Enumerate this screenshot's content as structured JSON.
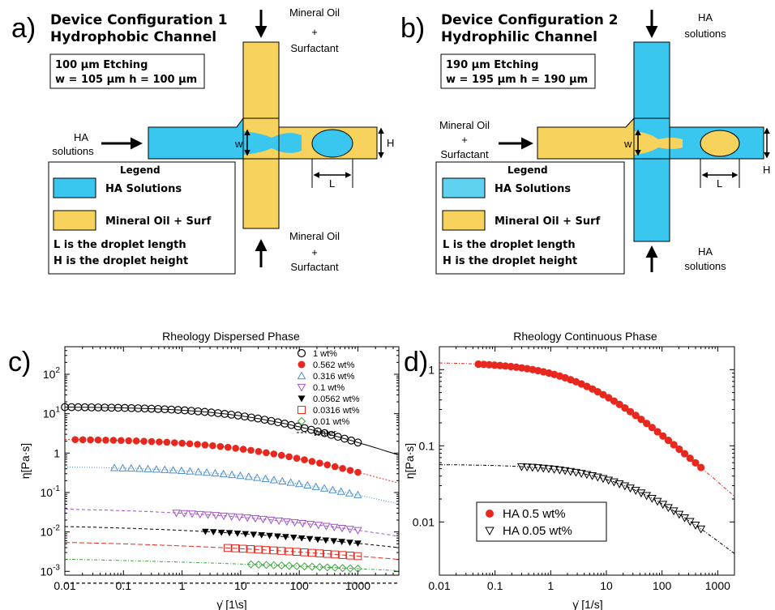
{
  "panels": {
    "a": {
      "letter": "a)",
      "title1": "Device Configuration 1",
      "title2": "Hydrophobic Channel",
      "etch1": "100 μm Etching",
      "etch2": "w = 105 μm h = 100 μm",
      "top_label": [
        "Mineral Oil",
        "+",
        "Surfactant"
      ],
      "bottom_label": [
        "Mineral Oil",
        "+",
        "Surfactant"
      ],
      "inlet_label": [
        "HA",
        "solutions"
      ],
      "legend_title": "Legend",
      "legend_items": [
        "HA Solutions",
        "Mineral Oil + Surf"
      ],
      "note_L": "L is the droplet length",
      "note_H": "H is the droplet height",
      "w": "w",
      "L": "L",
      "H": "H"
    },
    "b": {
      "letter": "b)",
      "title1": "Device Configuration 2",
      "title2": "Hydrophilic Channel",
      "etch1": "190 μm Etching",
      "etch2": "w = 195 μm h = 190 μm",
      "top_label": [
        "HA",
        "solutions"
      ],
      "bottom_label": [
        "HA",
        "solutions"
      ],
      "inlet_label": [
        "Mineral Oil",
        "+",
        "Surfactant"
      ],
      "legend_title": "Legend",
      "legend_items": [
        "HA Solutions",
        "Mineral Oil + Surf"
      ],
      "note_L": "L is the droplet length",
      "note_H": "H is the droplet height",
      "w": "w",
      "L": "L",
      "H": "H"
    },
    "c": {
      "letter": "c)"
    },
    "d": {
      "letter": "d)"
    }
  },
  "colors": {
    "ha_blue": "#39c7ef",
    "oil_yellow": "#f7d25c",
    "red": "#e8281e",
    "blue": "#4a8fd1",
    "purple": "#a050c8",
    "green": "#3aa63a"
  },
  "chart_data": [
    {
      "type": "scatter",
      "title": "Rheology Dispersed Phase",
      "xlabel": "γ̇ [1\\s]",
      "ylabel": "η[Pa·s]",
      "xscale": "log",
      "yscale": "log",
      "xlim": [
        0.01,
        5000
      ],
      "ylim": [
        0.0008,
        500
      ],
      "xticks": [
        "0.01",
        "0.1",
        "1",
        "10",
        "100",
        "1000"
      ],
      "yticks": [
        "10-3",
        "10-2",
        "10-1",
        "1",
        "101",
        "102"
      ],
      "legend_position": "top-right",
      "series": [
        {
          "name": "1 wt%",
          "marker": "circle-open",
          "color": "#000000",
          "eta0": 15,
          "lambda": 0.05,
          "n": 0.5,
          "x_from": 0.01,
          "x_to": 1000,
          "count": 45
        },
        {
          "name": "0.562 wt%",
          "marker": "circle-filled",
          "color": "#e8281e",
          "eta0": 2.3,
          "lambda": 0.06,
          "n": 0.56,
          "x_from": 0.015,
          "x_to": 1000,
          "count": 38
        },
        {
          "name": "0.316 wt%",
          "marker": "triangle-up-open",
          "color": "#4a8fd1",
          "eta0": 0.47,
          "lambda": 0.05,
          "n": 0.62,
          "x_from": 0.07,
          "x_to": 1000,
          "count": 30
        },
        {
          "name": "0.1 wt%",
          "marker": "triangle-down-open",
          "color": "#a050c8",
          "eta0": 0.042,
          "lambda": 0.04,
          "n": 0.72,
          "x_from": 0.8,
          "x_to": 1000,
          "count": 24
        },
        {
          "name": "0.0562 wt%",
          "marker": "triangle-down-filled",
          "color": "#000000",
          "eta0": 0.016,
          "lambda": 0.03,
          "n": 0.78,
          "x_from": 2.5,
          "x_to": 1000,
          "count": 20
        },
        {
          "name": "0.0316 wt%",
          "marker": "square-open",
          "color": "#e8281e",
          "eta0": 0.0066,
          "lambda": 0.02,
          "n": 0.82,
          "x_from": 6,
          "x_to": 1000,
          "count": 18
        },
        {
          "name": "0.01 wt%",
          "marker": "diamond-open",
          "color": "#3aa63a",
          "eta0": 0.0027,
          "lambda": 0.01,
          "n": 0.88,
          "x_from": 15,
          "x_to": 1000,
          "count": 15
        },
        {
          "name": "Water",
          "marker": "none",
          "color": "#000000",
          "eta0": 0.001,
          "lambda": 0,
          "n": 1,
          "x_from": 0.01,
          "x_to": 5000,
          "count": 0
        }
      ]
    },
    {
      "type": "scatter",
      "title": "Rheology Continuous Phase",
      "xlabel": "γ̇ [1/s]",
      "ylabel": "η[Pa·s]",
      "xscale": "log",
      "yscale": "log",
      "xlim": [
        0.01,
        2000
      ],
      "ylim": [
        0.002,
        2
      ],
      "xticks": [
        "0.01",
        "0.1",
        "1",
        "10",
        "100",
        "1000"
      ],
      "yticks": [
        "0.01",
        "0.1",
        "1"
      ],
      "legend_position": "bottom-left",
      "series": [
        {
          "name": "HA 0.5 wt%",
          "marker": "circle-filled",
          "color": "#e8281e",
          "eta0": 1.25,
          "lambda": 0.25,
          "n": 0.35,
          "x_from": 0.05,
          "x_to": 500,
          "count": 42
        },
        {
          "name": "HA 0.05 wt%",
          "marker": "triangle-down-open",
          "color": "#000000",
          "eta0": 0.057,
          "lambda": 0.04,
          "n": 0.4,
          "x_from": 0.3,
          "x_to": 500,
          "count": 34
        }
      ]
    }
  ]
}
